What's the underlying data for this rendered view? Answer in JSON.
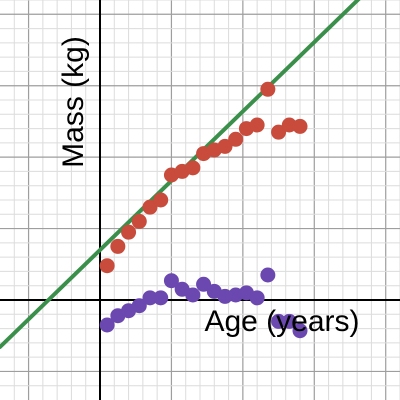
{
  "chart_data": {
    "type": "scatter",
    "xlabel": "Age (years)",
    "ylabel": "Mass (kg)",
    "xlim": [
      -1.4,
      4.2
    ],
    "ylim": [
      -1.4,
      4.2
    ],
    "grid": true,
    "series": [
      {
        "color": "#c84b3b",
        "points": [
          [
            0.1,
            0.48
          ],
          [
            0.25,
            0.75
          ],
          [
            0.4,
            0.95
          ],
          [
            0.55,
            1.1
          ],
          [
            0.7,
            1.3
          ],
          [
            0.85,
            1.4
          ],
          [
            1.0,
            1.75
          ],
          [
            1.15,
            1.8
          ],
          [
            1.3,
            1.85
          ],
          [
            1.45,
            2.05
          ],
          [
            1.6,
            2.1
          ],
          [
            1.75,
            2.15
          ],
          [
            1.9,
            2.25
          ],
          [
            2.05,
            2.4
          ],
          [
            2.2,
            2.45
          ],
          [
            2.35,
            2.95
          ],
          [
            2.5,
            2.35
          ],
          [
            2.65,
            2.45
          ],
          [
            2.8,
            2.43
          ]
        ]
      },
      {
        "color": "#6a48b0",
        "points": [
          [
            0.1,
            -0.35
          ],
          [
            0.25,
            -0.22
          ],
          [
            0.4,
            -0.15
          ],
          [
            0.55,
            -0.08
          ],
          [
            0.7,
            0.03
          ],
          [
            0.85,
            0.03
          ],
          [
            1.0,
            0.27
          ],
          [
            1.15,
            0.15
          ],
          [
            1.3,
            0.07
          ],
          [
            1.45,
            0.22
          ],
          [
            1.6,
            0.12
          ],
          [
            1.75,
            0.05
          ],
          [
            1.9,
            0.07
          ],
          [
            2.05,
            0.1
          ],
          [
            2.2,
            0.03
          ],
          [
            2.35,
            0.35
          ],
          [
            2.5,
            -0.3
          ],
          [
            2.65,
            -0.3
          ],
          [
            2.8,
            -0.43
          ]
        ]
      }
    ],
    "trendline": {
      "color": "#3a8f4a",
      "slope": 0.97,
      "intercept": 0.7,
      "x_range": [
        -1.4,
        4.2
      ]
    }
  }
}
